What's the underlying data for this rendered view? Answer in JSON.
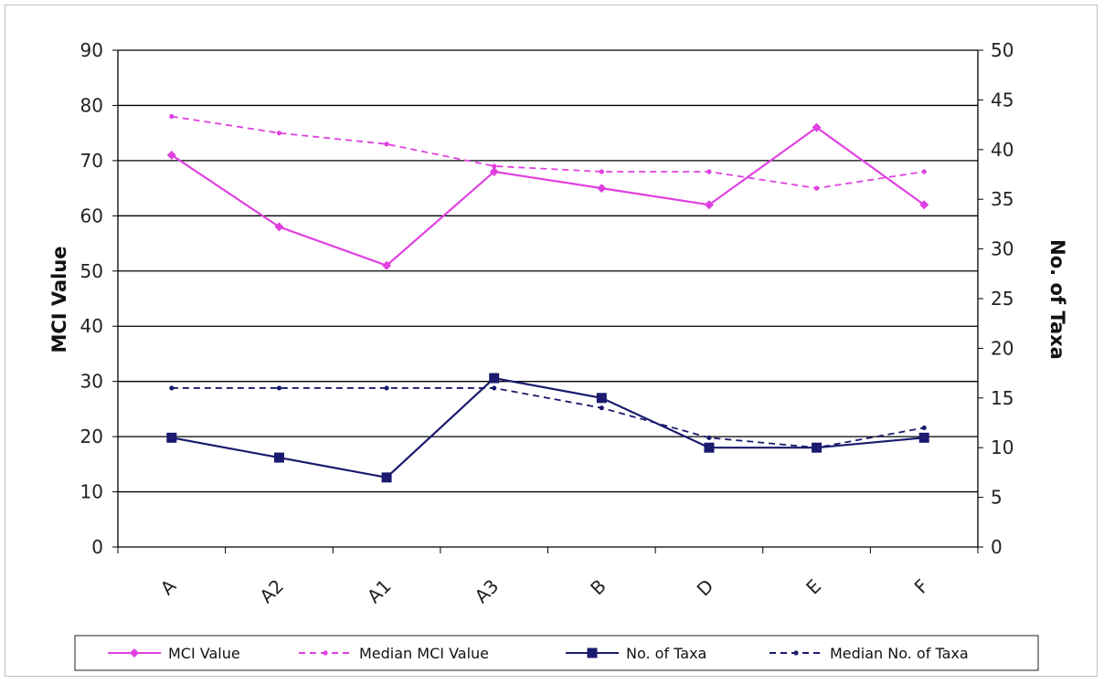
{
  "chart_data": {
    "type": "line",
    "categories": [
      "A",
      "A2",
      "A1",
      "A3",
      "B",
      "D",
      "E",
      "F"
    ],
    "ylabel": "MCI Value",
    "y2label": "No. of Taxa",
    "ylim": [
      0,
      90
    ],
    "y2lim": [
      0,
      50
    ],
    "yticks": [
      "0",
      "10",
      "20",
      "30",
      "40",
      "50",
      "60",
      "70",
      "80",
      "90"
    ],
    "y2ticks": [
      "0",
      "5",
      "10",
      "15",
      "20",
      "25",
      "30",
      "35",
      "40",
      "45",
      "50"
    ],
    "grid": true,
    "legend_position": "bottom",
    "series": [
      {
        "name": "MCI Value",
        "axis": "left",
        "values": [
          71,
          58,
          51,
          68,
          65,
          62,
          76,
          62
        ],
        "color": "#e040e0",
        "dash": "solid",
        "marker": "diamond"
      },
      {
        "name": "Median MCI Value",
        "axis": "left",
        "values": [
          78,
          75,
          73,
          69,
          68,
          68,
          65,
          68
        ],
        "color": "#e040e0",
        "dash": "dashed",
        "marker": "dot"
      },
      {
        "name": "No. of Taxa",
        "axis": "right",
        "values": [
          11,
          9,
          7,
          17,
          15,
          10,
          10,
          11
        ],
        "color": "#1a1a6e",
        "dash": "solid",
        "marker": "square"
      },
      {
        "name": "Median No. of Taxa",
        "axis": "right",
        "values": [
          16,
          16,
          16,
          16,
          14,
          11,
          10,
          12
        ],
        "color": "#1a1a6e",
        "dash": "dashed",
        "marker": "dot"
      }
    ]
  }
}
